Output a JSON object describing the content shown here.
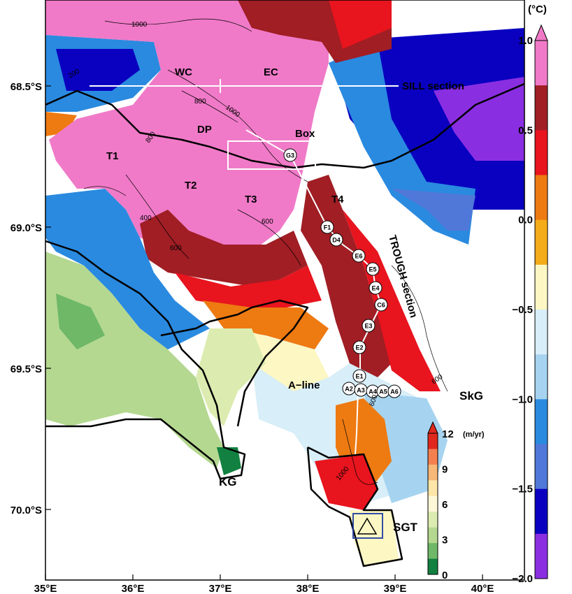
{
  "map": {
    "x_ticks": [
      "35°E",
      "36°E",
      "37°E",
      "38°E",
      "39°E",
      "40°E"
    ],
    "y_ticks": [
      "68.5°S",
      "69.0°S",
      "69.5°S",
      "70.0°S"
    ],
    "region_labels": {
      "wc": "WC",
      "ec": "EC",
      "dp": "DP",
      "box": "Box",
      "t1": "T1",
      "t2": "T2",
      "t3": "T3",
      "t4": "T4",
      "kg": "KG",
      "skg": "SkG",
      "sgt": "SGT",
      "aline": "A−line"
    },
    "section_labels": {
      "sill": "SILL section",
      "trough": "TROUGH section"
    },
    "contour_labels": [
      "1000",
      "800",
      "1000",
      "800",
      "200",
      "400",
      "600",
      "600",
      "600",
      "1000",
      "600"
    ],
    "stations": [
      "G3",
      "F1",
      "D4",
      "E6",
      "E5",
      "E4",
      "C6",
      "E3",
      "E2",
      "E1",
      "A2",
      "A3",
      "A4",
      "A5",
      "A6"
    ]
  },
  "temperature_scale": {
    "unit": "(°C)",
    "ticks": [
      "1.0",
      "0.5",
      "0.0",
      "−0.5",
      "−1.0",
      "−1.5",
      "−2.0"
    ],
    "colors": [
      "#f07ac8",
      "#a01e24",
      "#e8141e",
      "#ee7a12",
      "#f4ac18",
      "#fdf7c4",
      "#d8eef8",
      "#a6d4f0",
      "#2a8ae0",
      "#5078d8",
      "#0a00c0",
      "#8a2ee2"
    ]
  },
  "velocity_scale": {
    "unit": "(m/yr)",
    "ticks": [
      "12",
      "9",
      "6",
      "3",
      "0"
    ],
    "colors": [
      "#e0281e",
      "#f48050",
      "#f8b878",
      "#fde6a8",
      "#fef8d8",
      "#dcecb0",
      "#b4d890",
      "#6eb868",
      "#128040"
    ]
  }
}
